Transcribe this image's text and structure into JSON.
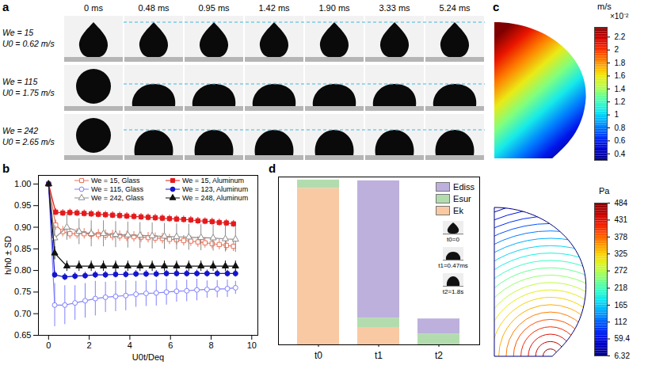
{
  "panels": [
    {
      "panel": "a",
      "time_labels": [
        "0 ms",
        "0.48 ms",
        "0.95 ms",
        "1.42 ms",
        "1.90 ms",
        "3.33 ms",
        "5.24 ms"
      ],
      "rows": [
        {
          "We": "We = 15",
          "U0": "U0 = 0.62 m/s"
        },
        {
          "We": "We = 115",
          "U0": "U0 = 1.75 m/s"
        },
        {
          "We": "We = 242",
          "U0": "U0 = 2.65 m/s"
        }
      ]
    },
    {
      "panel": "c",
      "velocity_colorbar": {
        "label": "m/s",
        "multiplier": "×10⁻²",
        "range": [
          0.3,
          2.35
        ],
        "ticks": [
          0.4,
          0.6,
          0.8,
          1,
          1.2,
          1.4,
          1.6,
          1.8,
          2,
          2.2
        ]
      },
      "pressure_colorbar": {
        "label": "Pa",
        "range": [
          6.32,
          484
        ],
        "ticks": [
          6.32,
          59.4,
          112,
          165,
          218,
          272,
          325,
          378,
          431,
          484
        ]
      }
    }
  ],
  "chart_data": [
    {
      "panel": "b",
      "type": "line",
      "x_label": "U0t/Deq",
      "y_label": "h/h0 ± SD",
      "xlim": [
        -0.5,
        10.3
      ],
      "xticks": [
        0,
        2,
        4,
        6,
        8,
        10
      ],
      "ylim": [
        0.65,
        1.02
      ],
      "yticks": [
        0.65,
        {
          "value": 0.7,
          "label": "0.70"
        },
        0.75,
        {
          "value": 0.8,
          "label": "0.80"
        },
        0.85,
        {
          "value": 0.9,
          "label": "0.90"
        },
        0.95,
        {
          "value": 1,
          "label": "1.00"
        }
      ],
      "grid": false,
      "legend": "top-right",
      "series": [
        {
          "name": "We = 15, Glass",
          "color": "#e8735a",
          "marker": "square-open",
          "line_style": "solid",
          "x": [
            0,
            0.35,
            0.7,
            1.05,
            1.4,
            1.75,
            2.1,
            2.45,
            2.8,
            3.15,
            3.5,
            3.85,
            4.2,
            4.55,
            4.9,
            5.25,
            5.6,
            5.95,
            6.3,
            6.65,
            7,
            7.35,
            7.7,
            8.05,
            8.4,
            8.75,
            9.1
          ],
          "values": [
            1.0,
            0.905,
            0.89,
            0.885,
            0.885,
            0.885,
            0.884,
            0.883,
            0.882,
            0.881,
            0.88,
            0.879,
            0.878,
            0.877,
            0.876,
            0.875,
            0.874,
            0.872,
            0.871,
            0.869,
            0.868,
            0.866,
            0.864,
            0.862,
            0.86,
            0.858,
            0.856
          ],
          "errors": [
            0,
            0.012,
            0.012,
            0.012,
            0.012,
            0.012,
            0.012,
            0.012,
            0.012,
            0.012,
            0.012,
            0.012,
            0.012,
            0.012,
            0.012,
            0.012,
            0.012,
            0.012,
            0.012,
            0.012,
            0.012,
            0.012,
            0.012,
            0.012,
            0.012,
            0.012,
            0.012
          ]
        },
        {
          "name": "We = 15, Aluminum",
          "color": "#e41a1c",
          "marker": "square",
          "line_style": "solid",
          "x": [
            0,
            0.35,
            0.7,
            1.05,
            1.4,
            1.75,
            2.1,
            2.45,
            2.8,
            3.15,
            3.5,
            3.85,
            4.2,
            4.55,
            4.9,
            5.25,
            5.6,
            5.95,
            6.3,
            6.65,
            7,
            7.35,
            7.7,
            8.05,
            8.4,
            8.75,
            9.1
          ],
          "values": [
            1.0,
            0.935,
            0.933,
            0.934,
            0.933,
            0.932,
            0.931,
            0.93,
            0.929,
            0.928,
            0.927,
            0.926,
            0.925,
            0.924,
            0.923,
            0.922,
            0.921,
            0.92,
            0.919,
            0.918,
            0.917,
            0.915,
            0.914,
            0.913,
            0.911,
            0.91,
            0.908
          ],
          "errors": [
            0,
            0.008,
            0.008,
            0.008,
            0.008,
            0.008,
            0.008,
            0.008,
            0.008,
            0.008,
            0.008,
            0.008,
            0.008,
            0.008,
            0.008,
            0.008,
            0.008,
            0.008,
            0.008,
            0.008,
            0.008,
            0.008,
            0.008,
            0.008,
            0.008,
            0.008,
            0.008
          ]
        },
        {
          "name": "We = 115, Glass",
          "color": "#8080ff",
          "marker": "circle-open",
          "line_style": "solid",
          "x": [
            0,
            0.3,
            0.8,
            1.3,
            1.8,
            2.3,
            2.8,
            3.3,
            3.8,
            4.3,
            4.8,
            5.3,
            5.8,
            6.3,
            6.8,
            7.3,
            7.8,
            8.3,
            8.8,
            9.2
          ],
          "values": [
            1.0,
            0.72,
            0.72,
            0.725,
            0.73,
            0.735,
            0.738,
            0.74,
            0.742,
            0.745,
            0.747,
            0.748,
            0.75,
            0.752,
            0.753,
            0.755,
            0.756,
            0.757,
            0.758,
            0.76
          ],
          "errors": [
            0,
            0.05,
            0.045,
            0.04,
            0.04,
            0.04,
            0.035,
            0.035,
            0.035,
            0.03,
            0.03,
            0.03,
            0.03,
            0.025,
            0.025,
            0.025,
            0.02,
            0.02,
            0.02,
            0.015
          ]
        },
        {
          "name": "We = 123, Aluminum",
          "color": "#1515d0",
          "marker": "circle",
          "line_style": "solid",
          "x": [
            0,
            0.3,
            0.8,
            1.3,
            1.8,
            2.3,
            2.8,
            3.3,
            3.8,
            4.3,
            4.8,
            5.3,
            5.8,
            6.3,
            6.8,
            7.3,
            7.8,
            8.3,
            8.8,
            9.2
          ],
          "values": [
            1.0,
            0.79,
            0.785,
            0.787,
            0.788,
            0.79,
            0.79,
            0.791,
            0.791,
            0.792,
            0.792,
            0.792,
            0.793,
            0.793,
            0.793,
            0.793,
            0.793,
            0.793,
            0.793,
            0.793
          ],
          "errors": [
            0,
            0.008,
            0.008,
            0.008,
            0.008,
            0.008,
            0.008,
            0.008,
            0.008,
            0.008,
            0.008,
            0.008,
            0.008,
            0.008,
            0.008,
            0.008,
            0.008,
            0.008,
            0.008,
            0.008
          ]
        },
        {
          "name": "We = 242, Glass",
          "color": "#8c8c8c",
          "marker": "triangle-open",
          "line_style": "solid",
          "x": [
            0,
            0.3,
            0.9,
            1.5,
            2.1,
            2.7,
            3.3,
            3.9,
            4.5,
            5.1,
            5.7,
            6.3,
            6.9,
            7.5,
            8.1,
            8.7,
            9.2
          ],
          "values": [
            1.0,
            0.875,
            0.9,
            0.89,
            0.885,
            0.885,
            0.883,
            0.882,
            0.881,
            0.88,
            0.879,
            0.878,
            0.877,
            0.876,
            0.875,
            0.873,
            0.872
          ],
          "errors": [
            0,
            0.03,
            0.03,
            0.03,
            0.03,
            0.03,
            0.03,
            0.03,
            0.03,
            0.03,
            0.03,
            0.03,
            0.03,
            0.03,
            0.03,
            0.03,
            0.03
          ]
        },
        {
          "name": "We = 248, Aluminum",
          "color": "#111111",
          "marker": "triangle",
          "line_style": "solid",
          "x": [
            0,
            0.3,
            0.9,
            1.5,
            2.1,
            2.7,
            3.3,
            3.9,
            4.5,
            5.1,
            5.7,
            6.3,
            6.9,
            7.5,
            8.1,
            8.7,
            9.2
          ],
          "values": [
            1.0,
            0.84,
            0.81,
            0.81,
            0.81,
            0.81,
            0.81,
            0.81,
            0.81,
            0.81,
            0.81,
            0.81,
            0.81,
            0.81,
            0.81,
            0.81,
            0.81
          ],
          "errors": [
            0,
            0.015,
            0.012,
            0.012,
            0.012,
            0.012,
            0.012,
            0.012,
            0.012,
            0.012,
            0.012,
            0.012,
            0.012,
            0.012,
            0.012,
            0.012,
            0.012
          ]
        }
      ]
    },
    {
      "panel": "d",
      "type": "bar",
      "stacked": true,
      "tick_labels": "x",
      "legend": "top-right",
      "categories": [
        "t0",
        "t1",
        "t2"
      ],
      "ylim": [
        0,
        220
      ],
      "series": [
        {
          "name": "Ediss",
          "color": "#bdb0dc",
          "values": [
            0,
            180,
            20
          ]
        },
        {
          "name": "Esur",
          "color": "#b3dcae",
          "values": [
            11,
            13,
            14
          ]
        },
        {
          "name": "Ek",
          "color": "#f9c9a3",
          "values": [
            205,
            22,
            0
          ]
        }
      ],
      "annotations": [
        "t0=0",
        "t1=0.47ms",
        "t2=1.8s"
      ]
    }
  ]
}
